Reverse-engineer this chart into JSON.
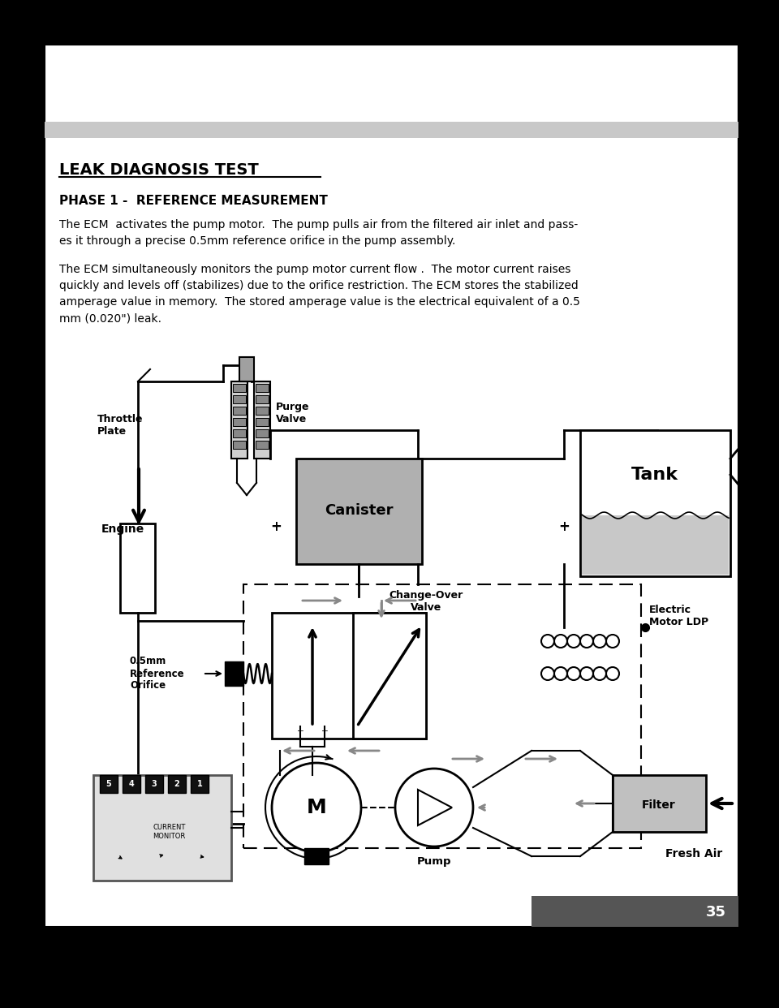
{
  "title": "LEAK DIAGNOSIS TEST",
  "phase": "PHASE 1 -  REFERENCE MEASUREMENT",
  "para1_l1": "The ECM  activates the pump motor.  The pump pulls air from the filtered air inlet and pass-",
  "para1_l2": "es it through a precise 0.5mm reference orifice in the pump assembly.",
  "para2_l1": "The ECM simultaneously monitors the pump motor current flow .  The motor current raises",
  "para2_l2": "quickly and levels off (stabilizes) due to the orifice restriction. The ECM stores the stabilized",
  "para2_l3": "amperage value in memory.  The stored amperage value is the electrical equivalent of a 0.5",
  "para2_l4": "mm (0.020\") leak.",
  "page_number": "35",
  "bg_color": "#000000",
  "page_bg": "#ffffff",
  "bar_color": "#c8c8c8"
}
